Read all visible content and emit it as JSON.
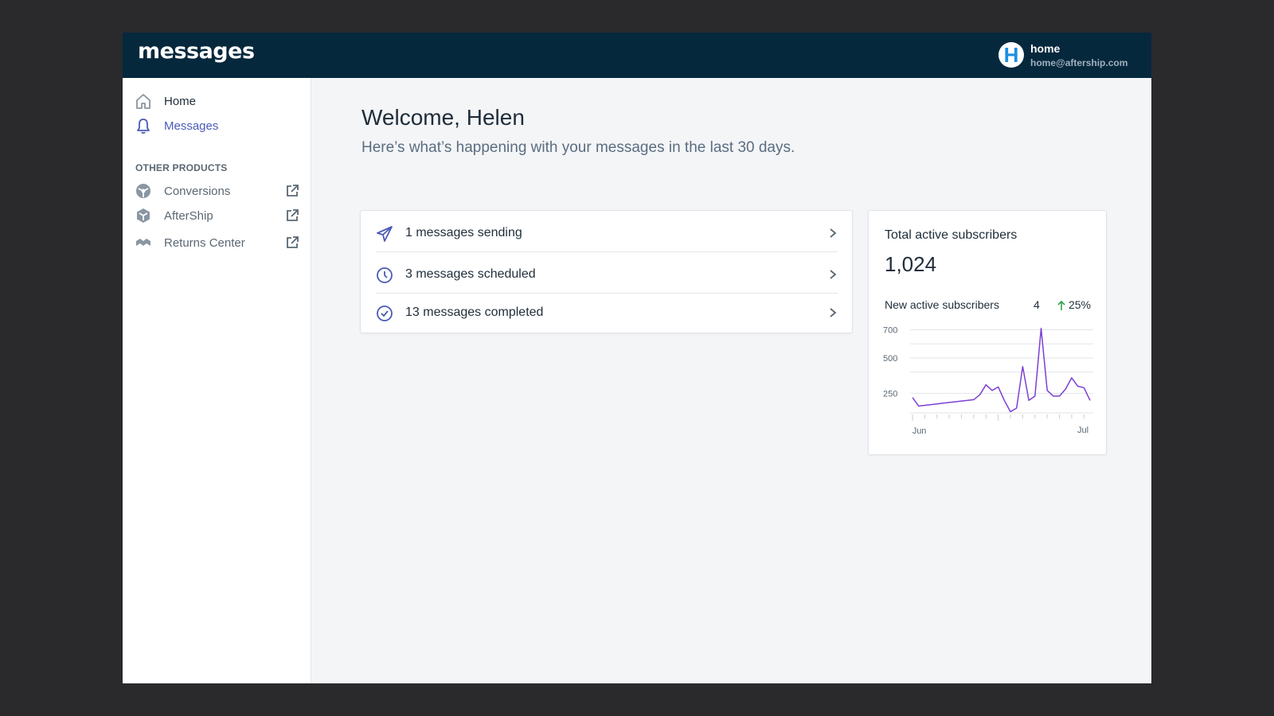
{
  "app": {
    "logo": "messages",
    "user": {
      "avatar_letter": "H",
      "name": "home",
      "email": "home@aftership.com"
    }
  },
  "sidebar": {
    "items": [
      {
        "label": "Home",
        "icon": "home-icon"
      },
      {
        "label": "Messages",
        "icon": "bell-icon",
        "active": true
      }
    ],
    "section_label": "OTHER PRODUCTS",
    "products": [
      {
        "label": "Conversions",
        "icon": "conversions-icon"
      },
      {
        "label": "AfterShip",
        "icon": "aftership-icon"
      },
      {
        "label": "Returns Center",
        "icon": "returns-icon"
      }
    ]
  },
  "main": {
    "welcome": "Welcome, Helen",
    "subtitle": "Here’s what’s happening with your messages in the last 30 days.",
    "messages": [
      {
        "label": "1 messages sending",
        "icon": "paper-plane-icon"
      },
      {
        "label": "3 messages scheduled",
        "icon": "clock-icon"
      },
      {
        "label": "13 messages completed",
        "icon": "check-circle-icon"
      }
    ]
  },
  "subscribers": {
    "title": "Total active subscribers",
    "total": "1,024",
    "new_label": "New active subscribers",
    "new_count": "4",
    "change": "25%",
    "change_direction": "up",
    "change_color": "#2ea44f"
  },
  "colors": {
    "accent": "#4b5bb7",
    "topbar": "#06283d",
    "line": "#7b3fd6"
  },
  "chart_data": {
    "type": "line",
    "title": "",
    "xlabel": "",
    "ylabel": "",
    "x_tick_labels": [
      "Jun",
      "Jul"
    ],
    "y_ticks": [
      250,
      500,
      700
    ],
    "ylim": [
      100,
      720
    ],
    "grid": true,
    "series": [
      {
        "values": [
          220,
          160,
          165,
          170,
          175,
          180,
          185,
          190,
          195,
          200,
          205,
          240,
          310,
          270,
          295,
          200,
          120,
          145,
          440,
          200,
          230,
          710,
          270,
          230,
          230,
          280,
          360,
          300,
          290,
          200
        ]
      }
    ]
  }
}
